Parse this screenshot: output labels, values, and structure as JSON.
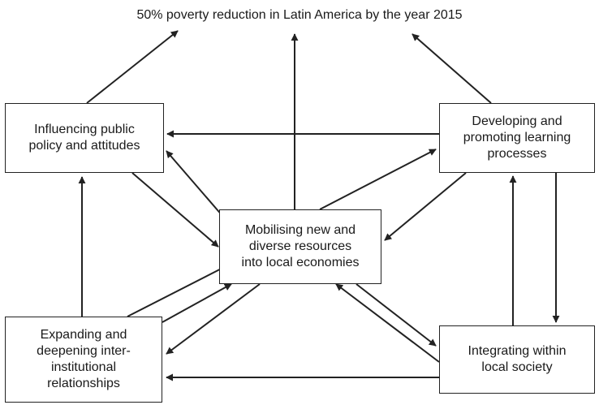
{
  "goal": {
    "text": "50% poverty reduction in Latin America by the year 2015"
  },
  "nodes": {
    "policy": {
      "label": "Influencing public\npolicy and attitudes"
    },
    "learning": {
      "label": "Developing and\npromoting learning\nprocesses"
    },
    "center": {
      "label": "Mobilising new and\ndiverse resources\ninto local economies"
    },
    "inter": {
      "label": "Expanding and\ndeepening inter-\ninstitutional\nrelationships"
    },
    "local": {
      "label": "Integrating within\nlocal society"
    }
  },
  "edges": [
    {
      "from": "policy",
      "to": "goal"
    },
    {
      "from": "center",
      "to": "goal"
    },
    {
      "from": "learning",
      "to": "goal"
    },
    {
      "from": "learning",
      "to": "policy"
    },
    {
      "from": "center",
      "to": "policy"
    },
    {
      "from": "policy",
      "to": "center"
    },
    {
      "from": "center",
      "to": "learning"
    },
    {
      "from": "learning",
      "to": "center"
    },
    {
      "from": "inter",
      "to": "policy"
    },
    {
      "from": "inter",
      "to": "center"
    },
    {
      "from": "center",
      "to": "inter"
    },
    {
      "from": "local",
      "to": "inter"
    },
    {
      "from": "center",
      "to": "local"
    },
    {
      "from": "local",
      "to": "center"
    },
    {
      "from": "local",
      "to": "learning"
    },
    {
      "from": "learning",
      "to": "local"
    }
  ]
}
